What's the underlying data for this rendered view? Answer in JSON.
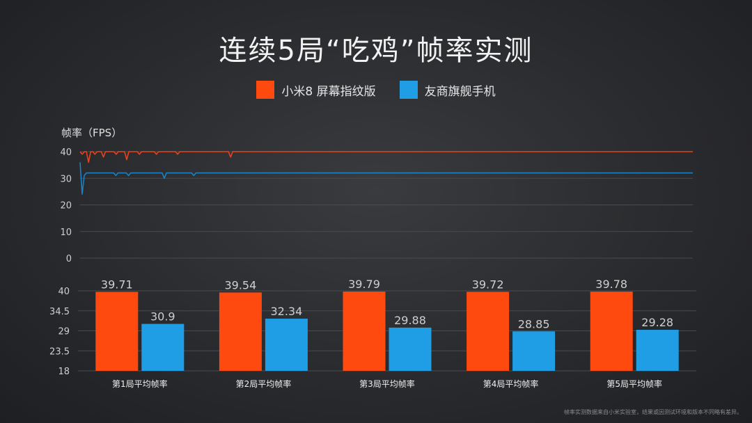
{
  "title": "连续5局“吃鸡”帧率实测",
  "colors": {
    "xiaomi": "#ff4a0f",
    "rival": "#1f9ee6",
    "line_xiaomi": "#e8431c",
    "line_rival": "#1a82c4"
  },
  "legend": [
    {
      "label": "小米8 屏幕指纹版",
      "color": "#ff4a0f"
    },
    {
      "label": "友商旗舰手机",
      "color": "#1f9ee6"
    }
  ],
  "footnote": "帧率实测数据来自小米实验室，结果或因测试环境和版本不同略有差异。",
  "chart_data": [
    {
      "type": "line",
      "ylabel": "帧率（FPS）",
      "ylim": [
        0,
        40
      ],
      "yticks": [
        0,
        10,
        20,
        30,
        40
      ],
      "grid": true,
      "series": [
        {
          "name": "小米8 屏幕指纹版",
          "values": [
            40,
            39,
            40,
            40,
            36,
            40,
            40,
            39,
            40,
            40,
            40,
            38,
            40,
            40,
            40,
            40,
            40,
            39,
            40,
            40,
            40,
            40,
            37,
            40,
            40,
            40,
            40,
            40,
            39,
            40,
            40,
            40,
            40,
            40,
            40,
            40,
            39,
            40,
            40,
            40,
            40,
            40,
            40,
            40,
            40,
            40,
            39,
            40,
            40,
            40,
            40,
            40,
            40,
            40,
            40,
            40,
            40,
            40,
            40,
            40,
            40,
            40,
            40,
            40,
            40,
            40,
            40,
            40,
            40,
            40,
            40,
            38,
            40,
            40,
            40,
            40,
            40,
            40,
            40,
            40,
            40,
            40,
            40,
            40,
            40,
            40,
            40,
            40,
            40,
            40,
            40,
            40,
            40,
            40,
            40,
            40,
            40,
            40,
            40,
            40,
            40,
            40,
            40,
            40,
            40,
            40,
            40,
            40,
            40,
            40,
            40,
            40,
            40,
            40,
            40,
            40,
            40,
            40,
            40,
            40,
            40,
            40,
            40,
            40,
            40,
            40,
            40,
            40,
            40,
            40,
            40,
            40,
            40,
            40,
            40,
            40,
            40,
            40,
            40,
            40,
            40,
            40,
            40,
            40,
            40,
            40,
            40,
            40,
            40,
            40,
            40,
            40,
            40,
            40,
            40,
            40,
            40,
            40,
            40,
            40,
            40,
            40,
            40,
            40,
            40,
            40,
            40,
            40,
            40,
            40,
            40,
            40,
            40,
            40,
            40,
            40,
            40,
            40,
            40,
            40,
            40,
            40,
            40,
            40,
            40,
            40,
            40,
            40,
            40,
            40,
            40,
            40,
            40,
            40,
            40,
            40,
            40,
            40,
            40,
            40,
            40,
            40,
            40,
            40,
            40,
            40,
            40,
            40,
            40,
            40,
            40,
            40,
            40,
            40,
            40,
            40,
            40,
            40,
            40,
            40,
            40,
            40,
            40,
            40,
            40,
            40,
            40,
            40,
            40,
            40,
            40,
            40,
            40,
            40,
            40,
            40,
            40,
            40,
            40,
            40,
            40,
            40,
            40,
            40,
            40,
            40,
            40,
            40,
            40,
            40,
            40,
            40,
            40,
            40,
            40,
            40,
            40,
            40,
            40,
            40,
            40,
            40,
            40,
            40,
            40,
            40,
            40,
            40,
            40,
            40,
            40,
            40,
            40,
            40,
            40,
            40,
            40,
            40,
            40,
            40,
            40,
            40,
            40,
            40,
            40,
            40,
            40,
            40,
            40,
            40
          ]
        },
        {
          "name": "友商旗舰手机",
          "values": [
            36,
            24,
            31,
            32,
            32,
            32,
            32,
            32,
            32,
            32,
            32,
            32,
            32,
            32,
            32,
            32,
            32,
            31,
            32,
            32,
            32,
            32,
            32,
            31,
            32,
            32,
            32,
            32,
            32,
            32,
            32,
            32,
            32,
            32,
            32,
            32,
            32,
            32,
            32,
            32,
            30,
            32,
            32,
            32,
            32,
            32,
            32,
            32,
            32,
            32,
            32,
            32,
            32,
            32,
            31,
            32,
            32,
            32,
            32,
            32,
            32,
            32,
            32,
            32,
            32,
            32,
            32,
            32,
            32,
            32,
            32,
            32,
            32,
            32,
            32,
            32,
            32,
            32,
            32,
            32,
            32,
            32,
            32,
            32,
            32,
            32,
            32,
            32,
            32,
            32,
            32,
            32,
            32,
            32,
            32,
            32,
            32,
            32,
            32,
            32,
            32,
            32,
            32,
            32,
            32,
            32,
            32,
            32,
            32,
            32,
            32,
            32,
            32,
            32,
            32,
            32,
            32,
            32,
            32,
            32,
            32,
            32,
            32,
            32,
            32,
            32,
            32,
            32,
            32,
            32,
            32,
            32,
            32,
            32,
            32,
            32,
            32,
            32,
            32,
            32,
            32,
            32,
            32,
            32,
            32,
            32,
            32,
            32,
            32,
            32,
            32,
            32,
            32,
            32,
            32,
            32,
            32,
            32,
            32,
            32,
            32,
            32,
            32,
            32,
            32,
            32,
            32,
            32,
            32,
            32,
            32,
            32,
            32,
            32,
            32,
            32,
            32,
            32,
            32,
            32,
            32,
            32,
            32,
            32,
            32,
            32,
            32,
            32,
            32,
            32,
            32,
            32,
            32,
            32,
            32,
            32,
            32,
            32,
            32,
            32,
            32,
            32,
            32,
            32,
            32,
            32,
            32,
            32,
            32,
            32,
            32,
            32,
            32,
            32,
            32,
            32,
            32,
            32,
            32,
            32,
            32,
            32,
            32,
            32,
            32,
            32,
            32,
            32,
            32,
            32,
            32,
            32,
            32,
            32,
            32,
            32,
            32,
            32,
            32,
            32,
            32,
            32,
            32,
            32,
            32,
            32,
            32,
            32,
            32,
            32,
            32,
            32,
            32,
            32,
            32,
            32,
            32,
            32,
            32,
            32,
            32,
            32,
            32,
            32,
            32,
            32,
            32,
            32,
            32,
            32,
            32,
            32,
            32,
            32,
            32,
            32,
            32,
            32,
            32,
            32,
            32,
            32,
            32,
            32,
            32,
            32,
            32,
            32,
            32,
            32,
            32,
            32
          ]
        }
      ]
    },
    {
      "type": "bar",
      "categories": [
        "第1局平均帧率",
        "第2局平均帧率",
        "第3局平均帧率",
        "第4局平均帧率",
        "第5局平均帧率"
      ],
      "ylim": [
        18,
        40
      ],
      "yticks": [
        "18",
        "23.5",
        "29",
        "34.5",
        "40"
      ],
      "series": [
        {
          "name": "小米8 屏幕指纹版",
          "values": [
            39.71,
            39.54,
            39.79,
            39.72,
            39.78
          ],
          "labels": [
            "39.71",
            "39.54",
            "39.79",
            "39.72",
            "39.78"
          ]
        },
        {
          "name": "友商旗舰手机",
          "values": [
            30.9,
            32.34,
            29.88,
            28.85,
            29.28
          ],
          "labels": [
            "30.9",
            "32.34",
            "29.88",
            "28.85",
            "29.28"
          ]
        }
      ]
    }
  ]
}
